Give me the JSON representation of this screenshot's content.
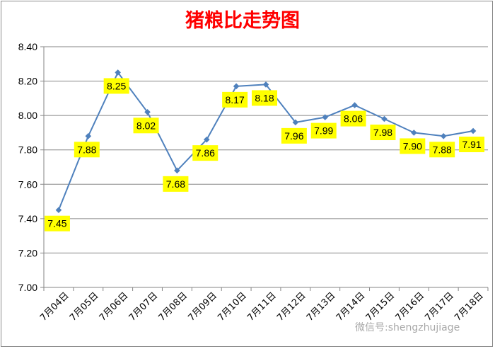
{
  "watermark": "微信号:shengzhujiage",
  "colors": {
    "title": "#ff0000",
    "line": "#4f81bd",
    "label_bg": "#ffff00",
    "axis": "#868686",
    "grid": "#868686"
  },
  "chart_data": {
    "type": "line",
    "title": "猪粮比走势图",
    "xlabel": "",
    "ylabel": "",
    "categories": [
      "7月04日",
      "7月05日",
      "7月06日",
      "7月07日",
      "7月08日",
      "7月09日",
      "7月10日",
      "7月11日",
      "7月12日",
      "7月13日",
      "7月14日",
      "7月15日",
      "7月16日",
      "7月17日",
      "7月18日"
    ],
    "values": [
      7.45,
      7.88,
      8.25,
      8.02,
      7.68,
      7.86,
      8.17,
      8.18,
      7.96,
      7.99,
      8.06,
      7.98,
      7.9,
      7.88,
      7.91
    ],
    "data_labels": [
      "7.45",
      "7.88",
      "8.25",
      "8.02",
      "7.68",
      "7.86",
      "8.17",
      "8.18",
      "7.96",
      "7.99",
      "8.06",
      "7.98",
      "7.90",
      "7.88",
      "7.91"
    ],
    "ylim": [
      7.0,
      8.4
    ],
    "yticks": [
      "7.00",
      "7.20",
      "7.40",
      "7.60",
      "7.80",
      "8.00",
      "8.20",
      "8.40"
    ],
    "grid": true,
    "legend": false
  }
}
